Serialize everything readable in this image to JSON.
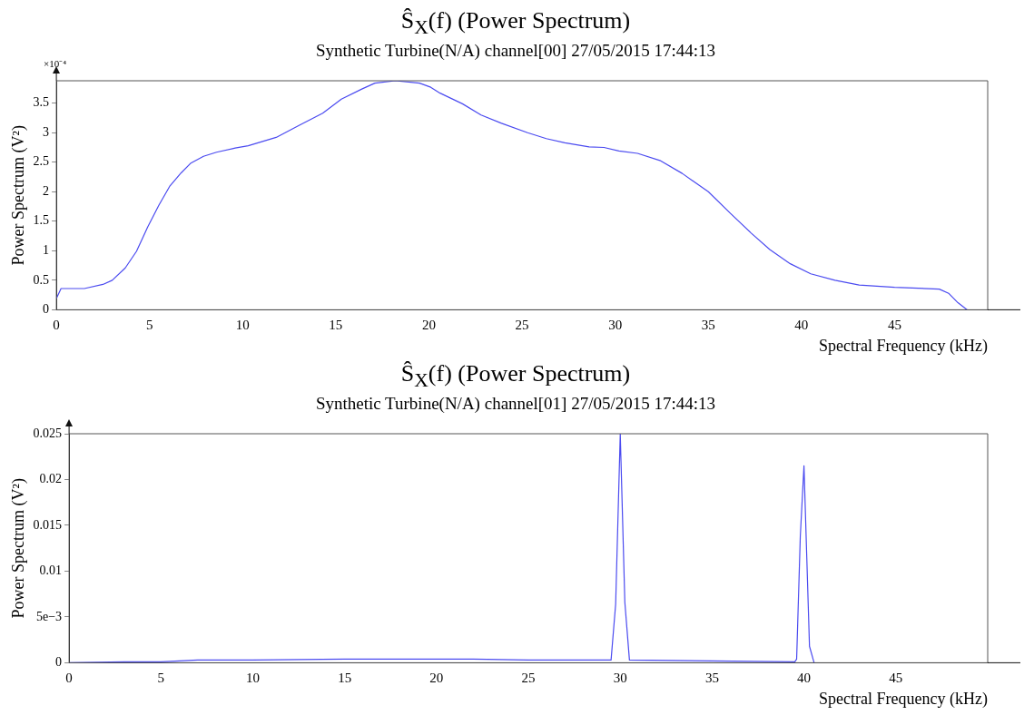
{
  "chart_data": [
    {
      "type": "line",
      "title": "Ŝ$_{X}$(f) (Power Spectrum)",
      "subtitle": "Synthetic Turbine(N/A) channel[00] 27/05/2015 17:44:13",
      "xlabel": "Spectral Frequency (kHz)",
      "ylabel": "Power Spectrum (V²)",
      "annotations": [
        "×10⁻⁴"
      ],
      "xlim": [
        0,
        50
      ],
      "xticks": [
        0,
        5,
        10,
        15,
        20,
        25,
        30,
        35,
        40,
        45
      ],
      "ylim": [
        0,
        3.88
      ],
      "yticks": [
        0,
        0.5,
        1,
        1.5,
        2,
        2.5,
        3,
        3.5
      ],
      "grid": false,
      "legend": false,
      "marker": "none",
      "line_style": "solid",
      "series": [
        {
          "color": "#4b4bf0",
          "x": [
            0,
            0.25,
            1.5,
            2.5,
            3.0,
            3.7,
            4.3,
            4.9,
            5.5,
            6.1,
            6.7,
            7.2,
            7.9,
            8.6,
            9.6,
            10.3,
            11.8,
            13.0,
            14.3,
            15.3,
            16.4,
            17.1,
            18.2,
            19.5,
            20.1,
            20.6,
            21.8,
            22.8,
            23.9,
            25.3,
            26.3,
            27.3,
            28.6,
            29.4,
            30.2,
            31.2,
            32.4,
            33.6,
            35.0,
            36.2,
            37.3,
            38.3,
            39.4,
            40.5,
            41.8,
            43.1,
            45.0,
            47.4,
            47.9,
            48.4,
            48.9
          ],
          "values": [
            0.19,
            0.36,
            0.36,
            0.43,
            0.5,
            0.71,
            0.99,
            1.4,
            1.77,
            2.1,
            2.32,
            2.48,
            2.6,
            2.67,
            2.74,
            2.78,
            2.92,
            3.12,
            3.33,
            3.57,
            3.74,
            3.84,
            3.88,
            3.84,
            3.77,
            3.67,
            3.49,
            3.3,
            3.16,
            3.0,
            2.9,
            2.83,
            2.76,
            2.75,
            2.69,
            2.65,
            2.53,
            2.31,
            2.0,
            1.63,
            1.3,
            1.02,
            0.78,
            0.61,
            0.5,
            0.42,
            0.38,
            0.35,
            0.28,
            0.12,
            0.0
          ]
        }
      ]
    },
    {
      "type": "line",
      "title": "Ŝ$_{X}$(f) (Power Spectrum)",
      "subtitle": "Synthetic Turbine(N/A) channel[01] 27/05/2015 17:44:13",
      "xlabel": "Spectral Frequency (kHz)",
      "ylabel": "Power Spectrum (V²)",
      "xlim": [
        0,
        50
      ],
      "xticks": [
        0,
        5,
        10,
        15,
        20,
        25,
        30,
        35,
        40,
        45
      ],
      "ylim": [
        0,
        0.025
      ],
      "yticks": [
        0,
        {
          "value": 0.005,
          "label": "5e−3"
        },
        0.01,
        0.015,
        0.02,
        0.025
      ],
      "grid": false,
      "legend": false,
      "marker": "none",
      "line_style": "solid",
      "series": [
        {
          "color": "#4b4bf0",
          "x": [
            0,
            3,
            5,
            7,
            10,
            15,
            18,
            22,
            25,
            29.5,
            29.75,
            30,
            30.25,
            30.5,
            35,
            39.5,
            39.6,
            39.8,
            40,
            40.3,
            40.55
          ],
          "values": [
            0,
            0.0001,
            0.0001,
            0.0003,
            0.0003,
            0.0004,
            0.0004,
            0.0004,
            0.0003,
            0.0003,
            0.0064,
            0.025,
            0.0066,
            0.0003,
            0.0002,
            0.0001,
            0.0004,
            0.0138,
            0.0215,
            0.0018,
            0
          ]
        }
      ]
    }
  ]
}
